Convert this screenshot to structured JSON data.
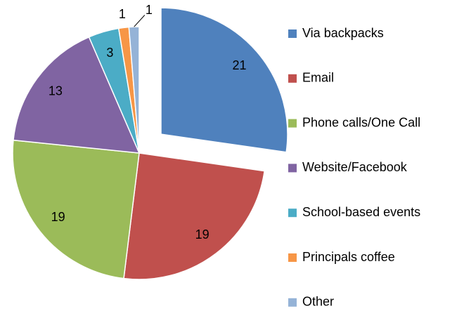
{
  "chart_data": {
    "type": "pie",
    "categories": [
      "Via backpacks",
      "Email",
      "Phone calls/One Call",
      "Website/Facebook",
      "School-based events",
      "Principals coffee",
      "Other"
    ],
    "values": [
      21,
      19,
      19,
      13,
      3,
      1,
      1
    ],
    "colors": [
      "#4F81BD",
      "#C0504D",
      "#9BBB59",
      "#8064A2",
      "#4BACC6",
      "#F79646",
      "#95B3D7"
    ],
    "legend": "right"
  }
}
